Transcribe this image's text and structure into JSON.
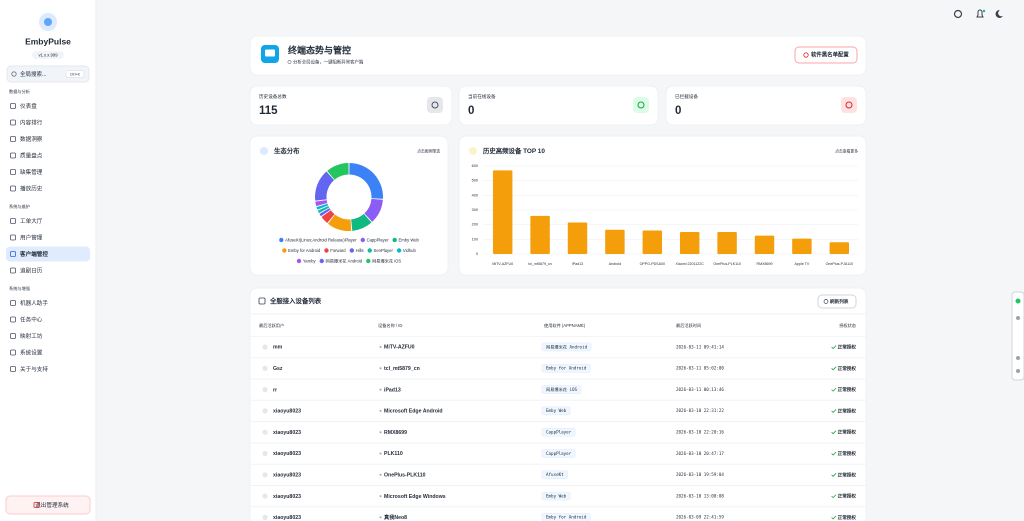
{
  "sidebar": {
    "title": "EmbyPulse",
    "version": "v1.x.x.999",
    "search_placeholder": "全局搜索...",
    "search_shortcut": "Ctrl+K",
    "sections": [
      {
        "title": "数据与分析",
        "items": [
          "仪表盘",
          "内容排行",
          "数据洞察",
          "质量盘点",
          "缺集管理",
          "播放历史"
        ]
      },
      {
        "title": "系统与维护",
        "items": [
          "工单大厅",
          "用户管理",
          "客户端管控",
          "追剧日历"
        ]
      },
      {
        "title": "系统与增强",
        "items": [
          "机器人助手",
          "任务中心",
          "映射工坊",
          "系统设置",
          "关于与支持"
        ]
      }
    ],
    "logout": "退出管理系统"
  },
  "header": {
    "title": "终端态势与管控",
    "subtitle": "分析全局设备，一键阻断异常客户端",
    "button": "软件黑名单配置"
  },
  "stats": [
    {
      "label": "历史设备总数",
      "value": 115
    },
    {
      "label": "当前在线设备",
      "value": 0
    },
    {
      "label": "已拦截设备",
      "value": 0
    }
  ],
  "chart_data": [
    {
      "type": "pie",
      "title": "生态分布",
      "subtitle": "点击图例筛选",
      "categories": [
        "AfuseKt(Linux;Android Release)Player",
        "CappPlayer",
        "Emby Web",
        "Emby for Android",
        "Forward",
        "Hills",
        "SenPlayer",
        "Vidhub",
        "Yamby",
        "网易爆米花 Android",
        "网易爆米花 iOS"
      ],
      "values": [
        30,
        14,
        12,
        14,
        5,
        2,
        2,
        2,
        3,
        18,
        13
      ],
      "colors": [
        "#3b82f6",
        "#8b5cf6",
        "#10b981",
        "#f59e0b",
        "#ef4444",
        "#6366f1",
        "#14b8a6",
        "#06b6d4",
        "#a855f7",
        "#6366f1",
        "#22c55e"
      ]
    },
    {
      "type": "bar",
      "title": "历史高频设备 TOP 10",
      "subtitle": "点击查看更多",
      "categories": [
        "MiTV-AZFU0",
        "tcl_mt5879_cn",
        "iPad13",
        "Android",
        "OPPO-PDSA00",
        "Xiaomi 2201122C",
        "OnePlus-PLK110",
        "RMX8699",
        "Apple TV",
        "OnePlus-PJA110"
      ],
      "values": [
        570,
        260,
        215,
        165,
        160,
        150,
        150,
        125,
        105,
        80
      ],
      "color": "#f59e0b",
      "ylim": [
        0,
        600
      ],
      "yticks": [
        0,
        100,
        200,
        300,
        400,
        500,
        600
      ],
      "grid": true
    }
  ],
  "table": {
    "title": "全服接入设备列表",
    "button": "刷新列表",
    "columns": [
      "最后活跃用户",
      "设备名称 / ID",
      "使用软件 (APPNAME)",
      "最后活跃时间",
      "授权状态"
    ],
    "rows": [
      [
        "mm",
        "MiTV-AZFU0",
        "网易爆米花 Android",
        "2026-03-11 09:41:14",
        "正常授权"
      ],
      [
        "Gsz",
        "tcl_mt5879_cn",
        "Emby for Android",
        "2026-03-11 05:02:00",
        "正常授权"
      ],
      [
        "rr",
        "iPad13",
        "网易爆米花 iOS",
        "2026-03-11 00:13:46",
        "正常授权"
      ],
      [
        "xiaoyu8023",
        "Microsoft Edge Android",
        "Emby Web",
        "2026-03-10 22:31:22",
        "正常授权"
      ],
      [
        "xiaoyu8023",
        "RMX8699",
        "CappPlayer",
        "2026-03-10 22:20:16",
        "正常授权"
      ],
      [
        "xiaoyu8023",
        "PLK110",
        "CappPlayer",
        "2026-03-10 20:47:17",
        "正常授权"
      ],
      [
        "xiaoyu8023",
        "OnePlus-PLK110",
        "AfuseKt",
        "2026-03-10 19:59:04",
        "正常授权"
      ],
      [
        "xiaoyu8023",
        "Microsoft Edge Windows",
        "Emby Web",
        "2026-03-10 13:08:08",
        "正常授权"
      ],
      [
        "xiaoyu8023",
        "真我Neo8",
        "Emby for Android",
        "2026-03-09 22:41:59",
        "正常授权"
      ]
    ]
  }
}
